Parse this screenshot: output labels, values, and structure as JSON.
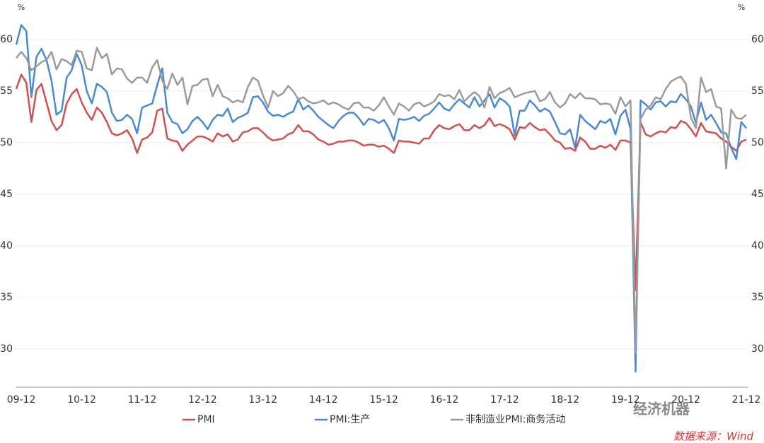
{
  "chart_data": {
    "type": "line",
    "ylabel": "%",
    "y2label": "%",
    "categories": [
      null,
      "09-12",
      null,
      null,
      null,
      null,
      null,
      null,
      null,
      null,
      null,
      null,
      null,
      "10-12",
      null,
      null,
      null,
      null,
      null,
      null,
      null,
      null,
      null,
      null,
      null,
      "11-12",
      null,
      null,
      null,
      null,
      null,
      null,
      null,
      null,
      null,
      null,
      null,
      "12-12",
      null,
      null,
      null,
      null,
      null,
      null,
      null,
      null,
      null,
      null,
      null,
      "13-12",
      null,
      null,
      null,
      null,
      null,
      null,
      null,
      null,
      null,
      null,
      null,
      "14-12",
      null,
      null,
      null,
      null,
      null,
      null,
      null,
      null,
      null,
      null,
      null,
      "15-12",
      null,
      null,
      null,
      null,
      null,
      null,
      null,
      null,
      null,
      null,
      null,
      "16-12",
      null,
      null,
      null,
      null,
      null,
      null,
      null,
      null,
      null,
      null,
      null,
      "17-12",
      null,
      null,
      null,
      null,
      null,
      null,
      null,
      null,
      null,
      null,
      null,
      "18-12",
      null,
      null,
      null,
      null,
      null,
      null,
      null,
      null,
      null,
      null,
      null,
      "19-12",
      null,
      null,
      null,
      null,
      null,
      null,
      null,
      null,
      null,
      null,
      null,
      "20-12",
      null,
      null,
      null,
      null,
      null,
      null,
      null,
      null,
      null,
      null,
      null,
      "21-12"
    ],
    "series": [
      {
        "name": "PMI",
        "color": "#d0504f",
        "values": [
          55.2,
          56.6,
          55.8,
          52.0,
          55.1,
          55.7,
          53.9,
          52.1,
          51.2,
          51.7,
          53.8,
          54.7,
          55.2,
          53.9,
          52.9,
          52.2,
          53.4,
          52.9,
          52.0,
          50.9,
          50.7,
          50.9,
          51.2,
          50.4,
          49.0,
          50.3,
          50.5,
          51.0,
          53.1,
          53.3,
          50.4,
          50.2,
          50.1,
          49.2,
          49.8,
          50.2,
          50.6,
          50.6,
          50.4,
          50.1,
          50.9,
          50.6,
          50.8,
          50.1,
          50.3,
          51.0,
          51.1,
          51.4,
          51.4,
          51.0,
          50.5,
          50.2,
          50.3,
          50.4,
          50.8,
          51.0,
          51.7,
          51.1,
          51.1,
          50.8,
          50.3,
          50.1,
          49.8,
          49.9,
          50.1,
          50.1,
          50.2,
          50.2,
          50.0,
          49.7,
          49.8,
          49.8,
          49.6,
          49.7,
          49.4,
          49.0,
          50.2,
          50.1,
          50.1,
          50.0,
          49.9,
          50.4,
          50.4,
          51.2,
          51.7,
          51.4,
          51.3,
          51.6,
          51.8,
          51.2,
          51.2,
          51.7,
          51.4,
          51.7,
          52.4,
          51.6,
          51.8,
          51.6,
          51.3,
          50.3,
          51.5,
          51.4,
          51.9,
          51.5,
          51.2,
          51.3,
          50.8,
          50.2,
          50.0,
          49.4,
          49.5,
          49.2,
          50.5,
          50.1,
          49.4,
          49.4,
          49.7,
          49.5,
          49.8,
          49.3,
          50.2,
          50.2,
          50.0,
          35.7,
          52.0,
          50.8,
          50.6,
          50.9,
          51.1,
          51.0,
          51.5,
          51.4,
          52.1,
          51.9,
          51.3,
          50.6,
          51.9,
          51.1,
          51.0,
          50.9,
          50.4,
          50.1,
          49.6,
          49.2,
          50.1,
          50.3
        ]
      },
      {
        "name": "PMI:生产",
        "color": "#4a8ad2",
        "values": [
          59.5,
          61.4,
          60.8,
          54.4,
          58.3,
          59.1,
          58.0,
          56.0,
          52.7,
          53.1,
          56.3,
          57.0,
          58.6,
          57.5,
          55.0,
          53.8,
          55.7,
          55.4,
          54.9,
          52.9,
          52.1,
          52.2,
          52.7,
          52.3,
          50.9,
          53.4,
          53.6,
          53.8,
          55.6,
          57.2,
          52.9,
          52.0,
          51.8,
          50.9,
          51.3,
          52.1,
          52.5,
          52.0,
          51.3,
          52.2,
          52.7,
          52.6,
          53.3,
          52.0,
          52.4,
          52.6,
          52.9,
          54.4,
          54.5,
          53.9,
          53.0,
          52.6,
          52.7,
          52.5,
          52.8,
          53.0,
          54.2,
          53.2,
          53.6,
          53.1,
          52.5,
          52.1,
          51.7,
          51.4,
          52.1,
          52.6,
          52.9,
          52.9,
          52.4,
          51.7,
          52.3,
          52.2,
          51.9,
          52.2,
          51.4,
          50.2,
          52.3,
          52.2,
          52.3,
          52.5,
          52.1,
          52.6,
          52.8,
          53.3,
          53.9,
          53.3,
          53.1,
          53.7,
          54.2,
          53.8,
          53.4,
          54.4,
          53.5,
          54.1,
          54.7,
          53.4,
          54.3,
          54.0,
          53.5,
          50.7,
          53.1,
          53.1,
          54.1,
          53.6,
          53.0,
          53.3,
          53.0,
          52.0,
          50.9,
          50.8,
          51.3,
          49.5,
          52.7,
          52.1,
          51.7,
          51.3,
          52.1,
          51.9,
          52.3,
          50.8,
          52.6,
          53.2,
          51.3,
          27.8,
          54.1,
          53.7,
          53.2,
          53.9,
          54.0,
          53.5,
          54.0,
          53.9,
          54.7,
          54.2,
          53.5,
          51.9,
          53.9,
          52.2,
          52.7,
          51.9,
          51.0,
          50.9,
          49.5,
          48.4,
          52.0,
          51.4
        ]
      },
      {
        "name": "非制造业PMI:商务活动",
        "color": "#9b9b9b",
        "values": [
          58.2,
          58.8,
          58.2,
          57.0,
          57.4,
          57.8,
          58.0,
          58.8,
          57.1,
          58.1,
          57.9,
          57.5,
          58.9,
          58.8,
          57.2,
          57.0,
          59.2,
          58.2,
          58.6,
          56.6,
          57.2,
          57.1,
          56.2,
          55.8,
          56.3,
          56.3,
          55.8,
          57.3,
          58.0,
          56.0,
          55.2,
          56.7,
          55.6,
          56.3,
          53.7,
          55.5,
          55.6,
          56.1,
          56.2,
          54.5,
          55.6,
          54.5,
          54.3,
          53.9,
          54.1,
          53.9,
          55.4,
          56.3,
          56.0,
          54.6,
          53.4,
          55.0,
          54.5,
          54.8,
          55.5,
          55.0,
          54.2,
          54.4,
          54.0,
          53.8,
          53.9,
          54.1,
          53.7,
          53.9,
          53.7,
          53.4,
          53.2,
          53.8,
          53.9,
          53.4,
          53.4,
          53.1,
          53.6,
          54.4,
          53.5,
          52.7,
          53.8,
          53.5,
          53.1,
          53.7,
          53.9,
          53.5,
          53.7,
          54.0,
          54.7,
          54.5,
          54.6,
          54.2,
          55.1,
          54.0,
          54.5,
          54.9,
          54.5,
          53.4,
          55.4,
          54.3,
          54.8,
          55.0,
          55.3,
          54.4,
          54.6,
          54.8,
          54.9,
          55.0,
          54.0,
          54.2,
          54.9,
          53.9,
          53.4,
          53.8,
          54.7,
          54.3,
          54.8,
          54.3,
          54.3,
          54.2,
          53.7,
          53.8,
          53.7,
          52.8,
          54.4,
          53.5,
          54.1,
          29.6,
          52.3,
          53.2,
          53.6,
          54.4,
          54.2,
          55.2,
          55.9,
          56.2,
          56.4,
          55.7,
          52.4,
          51.4,
          56.3,
          54.9,
          55.2,
          53.5,
          53.3,
          47.5,
          53.2,
          52.4,
          52.3,
          52.7
        ]
      }
    ],
    "ylim": [
      26.3,
      63
    ],
    "yticks": [
      30,
      35,
      40,
      45,
      50,
      55,
      60
    ],
    "y2lim": [
      26.3,
      63
    ],
    "y2ticks": [
      30,
      35,
      40,
      45,
      50,
      55,
      60
    ],
    "grid": true,
    "watermark": "经济机器",
    "source": "数据来源：Wind"
  }
}
